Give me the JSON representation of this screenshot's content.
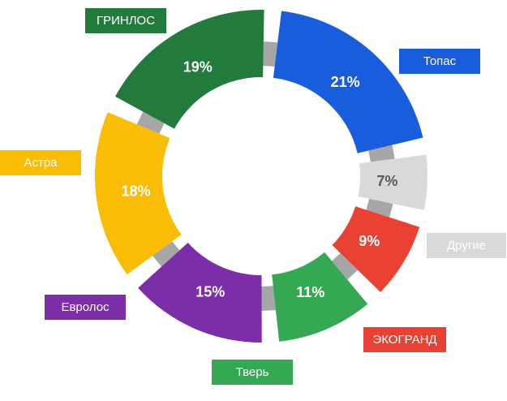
{
  "chart_data": {
    "type": "pie",
    "title": "",
    "slices": [
      {
        "label": "Топас",
        "value": 21,
        "display": "21%",
        "color": "#1a5ddc",
        "text_color": "#ffffff"
      },
      {
        "label": "Другие",
        "value": 7,
        "display": "7%",
        "color": "#d9d9d9",
        "text_color": "#595959"
      },
      {
        "label": "ЭКОГРАНД",
        "value": 9,
        "display": "9%",
        "color": "#e94235",
        "text_color": "#ffffff"
      },
      {
        "label": "Тверь",
        "value": 11,
        "display": "11%",
        "color": "#34a853",
        "text_color": "#ffffff"
      },
      {
        "label": "Евролос",
        "value": 15,
        "display": "15%",
        "color": "#7b2ea8",
        "text_color": "#ffffff"
      },
      {
        "label": "Астра",
        "value": 18,
        "display": "18%",
        "color": "#fbbc05",
        "text_color": "#ffffff"
      },
      {
        "label": "ГРИНЛОС",
        "value": 19,
        "display": "19%",
        "color": "#227a3c",
        "text_color": "#ffffff"
      }
    ]
  }
}
